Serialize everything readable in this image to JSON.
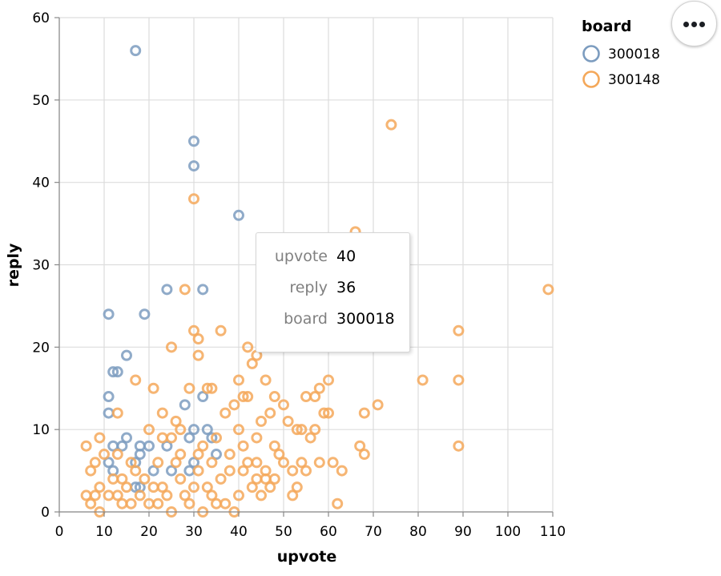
{
  "chart_data": {
    "type": "scatter",
    "xlabel": "upvote",
    "ylabel": "reply",
    "xlim": [
      0,
      110
    ],
    "ylim": [
      0,
      60
    ],
    "x_ticks": [
      0,
      10,
      20,
      30,
      40,
      50,
      60,
      70,
      80,
      90,
      100,
      110
    ],
    "y_ticks": [
      0,
      10,
      20,
      30,
      40,
      50,
      60
    ],
    "grid": true,
    "marker": "hollow-circle",
    "legend": {
      "title": "board",
      "placement": "top-right",
      "entries": [
        {
          "label": "300018",
          "color": "#7c9cbf"
        },
        {
          "label": "300148",
          "color": "#f4a85a"
        }
      ]
    },
    "series": [
      {
        "name": "300018",
        "color": "#7c9cbf",
        "points": [
          [
            17,
            56
          ],
          [
            30,
            45
          ],
          [
            30,
            42
          ],
          [
            40,
            36
          ],
          [
            24,
            27
          ],
          [
            32,
            27
          ],
          [
            11,
            24
          ],
          [
            19,
            24
          ],
          [
            15,
            19
          ],
          [
            12,
            17
          ],
          [
            13,
            17
          ],
          [
            11,
            14
          ],
          [
            11,
            12
          ],
          [
            12,
            8
          ],
          [
            14,
            8
          ],
          [
            15,
            9
          ],
          [
            18,
            7
          ],
          [
            18,
            8
          ],
          [
            17,
            6
          ],
          [
            11,
            6
          ],
          [
            12,
            5
          ],
          [
            17,
            3
          ],
          [
            18,
            3
          ],
          [
            20,
            8
          ],
          [
            21,
            5
          ],
          [
            24,
            8
          ],
          [
            25,
            5
          ],
          [
            28,
            13
          ],
          [
            29,
            9
          ],
          [
            30,
            10
          ],
          [
            30,
            6
          ],
          [
            29,
            5
          ],
          [
            32,
            14
          ],
          [
            33,
            10
          ],
          [
            35,
            7
          ],
          [
            34,
            9
          ]
        ]
      },
      {
        "name": "300148",
        "color": "#f4a85a",
        "points": [
          [
            74,
            47
          ],
          [
            30,
            38
          ],
          [
            66,
            34
          ],
          [
            109,
            27
          ],
          [
            28,
            27
          ],
          [
            30,
            22
          ],
          [
            36,
            22
          ],
          [
            89,
            22
          ],
          [
            42,
            20
          ],
          [
            25,
            20
          ],
          [
            44,
            19
          ],
          [
            43,
            18
          ],
          [
            31,
            19
          ],
          [
            31,
            21
          ],
          [
            17,
            16
          ],
          [
            40,
            16
          ],
          [
            46,
            16
          ],
          [
            60,
            16
          ],
          [
            81,
            16
          ],
          [
            89,
            16
          ],
          [
            21,
            15
          ],
          [
            29,
            15
          ],
          [
            33,
            15
          ],
          [
            34,
            15
          ],
          [
            58,
            15
          ],
          [
            41,
            14
          ],
          [
            42,
            14
          ],
          [
            48,
            14
          ],
          [
            55,
            14
          ],
          [
            57,
            14
          ],
          [
            71,
            13
          ],
          [
            39,
            13
          ],
          [
            50,
            13
          ],
          [
            59,
            12
          ],
          [
            60,
            12
          ],
          [
            68,
            12
          ],
          [
            13,
            12
          ],
          [
            23,
            12
          ],
          [
            37,
            12
          ],
          [
            47,
            12
          ],
          [
            51,
            11
          ],
          [
            26,
            11
          ],
          [
            45,
            11
          ],
          [
            53,
            10
          ],
          [
            54,
            10
          ],
          [
            20,
            10
          ],
          [
            27,
            10
          ],
          [
            40,
            10
          ],
          [
            57,
            10
          ],
          [
            9,
            9
          ],
          [
            25,
            9
          ],
          [
            35,
            9
          ],
          [
            44,
            9
          ],
          [
            56,
            9
          ],
          [
            67,
            8
          ],
          [
            89,
            8
          ],
          [
            6,
            8
          ],
          [
            32,
            8
          ],
          [
            48,
            8
          ],
          [
            61,
            6
          ],
          [
            63,
            5
          ],
          [
            62,
            1
          ],
          [
            68,
            7
          ],
          [
            8,
            6
          ],
          [
            10,
            7
          ],
          [
            13,
            7
          ],
          [
            17,
            5
          ],
          [
            22,
            6
          ],
          [
            26,
            6
          ],
          [
            31,
            7
          ],
          [
            38,
            7
          ],
          [
            42,
            6
          ],
          [
            46,
            5
          ],
          [
            50,
            6
          ],
          [
            52,
            5
          ],
          [
            54,
            6
          ],
          [
            7,
            5
          ],
          [
            9,
            3
          ],
          [
            12,
            4
          ],
          [
            15,
            3
          ],
          [
            19,
            4
          ],
          [
            23,
            3
          ],
          [
            27,
            4
          ],
          [
            33,
            3
          ],
          [
            36,
            4
          ],
          [
            41,
            5
          ],
          [
            44,
            4
          ],
          [
            47,
            3
          ],
          [
            53,
            3
          ],
          [
            6,
            2
          ],
          [
            8,
            2
          ],
          [
            11,
            2
          ],
          [
            14,
            1
          ],
          [
            18,
            2
          ],
          [
            20,
            1
          ],
          [
            24,
            2
          ],
          [
            28,
            2
          ],
          [
            30,
            3
          ],
          [
            34,
            2
          ],
          [
            37,
            1
          ],
          [
            40,
            2
          ],
          [
            43,
            3
          ],
          [
            45,
            2
          ],
          [
            48,
            4
          ],
          [
            52,
            2
          ],
          [
            7,
            1
          ],
          [
            9,
            0
          ],
          [
            13,
            2
          ],
          [
            16,
            1
          ],
          [
            22,
            1
          ],
          [
            25,
            0
          ],
          [
            29,
            1
          ],
          [
            32,
            0
          ],
          [
            35,
            1
          ],
          [
            39,
            0
          ],
          [
            14,
            4
          ],
          [
            16,
            6
          ],
          [
            21,
            3
          ],
          [
            23,
            9
          ],
          [
            27,
            7
          ],
          [
            31,
            5
          ],
          [
            34,
            6
          ],
          [
            38,
            5
          ],
          [
            41,
            8
          ],
          [
            44,
            6
          ],
          [
            46,
            4
          ],
          [
            49,
            7
          ],
          [
            55,
            5
          ],
          [
            58,
            6
          ]
        ]
      }
    ],
    "tooltip": {
      "rows": [
        {
          "key": "upvote",
          "value": "40"
        },
        {
          "key": "reply",
          "value": "36"
        },
        {
          "key": "board",
          "value": "300018"
        }
      ]
    }
  }
}
